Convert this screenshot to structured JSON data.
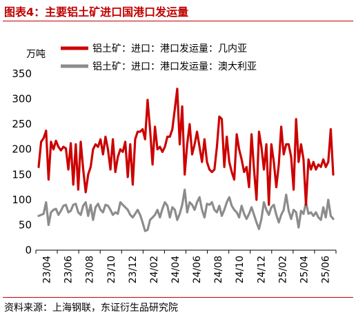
{
  "figure_title": "图表4：主要铝土矿进口国港口发运量",
  "source_note": "资料来源：上海钢联，东证衍生品研究院",
  "colors": {
    "title": "#c00000",
    "guinea": "#cc0000",
    "australia": "#8c8c8c"
  },
  "chart_data": {
    "type": "line",
    "unit_label": "万吨",
    "ylim": [
      0,
      350
    ],
    "yticks": [
      0,
      50,
      100,
      150,
      200,
      250,
      300,
      350
    ],
    "xticks": [
      "23/04",
      "23/06",
      "23/08",
      "23/10",
      "23/12",
      "24/02",
      "24/04",
      "24/06",
      "24/08",
      "24/10",
      "24/12",
      "25/02",
      "25/04",
      "25/06"
    ],
    "grid": false,
    "legend_position": "top",
    "series": [
      {
        "name": "铝土矿：进口：港口发运量：几内亚",
        "color": "#cc0000",
        "values": [
          165,
          215,
          222,
          237,
          140,
          215,
          200,
          217,
          205,
          198,
          205,
          202,
          160,
          212,
          130,
          210,
          120,
          215,
          160,
          115,
          150,
          165,
          200,
          210,
          205,
          220,
          190,
          225,
          200,
          160,
          220,
          155,
          185,
          200,
          195,
          215,
          145,
          210,
          130,
          220,
          235,
          235,
          240,
          220,
          298,
          240,
          170,
          245,
          200,
          205,
          195,
          205,
          225,
          225,
          240,
          280,
          320,
          210,
          285,
          150,
          210,
          250,
          190,
          210,
          235,
          205,
          175,
          220,
          175,
          160,
          155,
          160,
          205,
          265,
          260,
          165,
          225,
          175,
          155,
          140,
          230,
          200,
          180,
          155,
          165,
          125,
          230,
          160,
          100,
          235,
          205,
          160,
          210,
          90,
          210,
          175,
          125,
          170,
          245,
          190,
          210,
          210,
          185,
          120,
          260,
          175,
          210,
          180,
          90,
          180,
          160,
          175,
          160,
          170,
          165,
          180,
          165,
          175,
          240,
          150
        ]
      },
      {
        "name": "铝土矿：进口：港口发运量：澳大利亚",
        "color": "#8c8c8c",
        "values": [
          68,
          70,
          72,
          95,
          50,
          75,
          80,
          82,
          70,
          78,
          88,
          90,
          75,
          78,
          90,
          92,
          75,
          70,
          88,
          95,
          68,
          90,
          60,
          85,
          92,
          80,
          75,
          90,
          88,
          80,
          70,
          75,
          72,
          95,
          90,
          85,
          80,
          70,
          65,
          72,
          80,
          70,
          55,
          38,
          40,
          60,
          65,
          70,
          80,
          65,
          82,
          95,
          88,
          65,
          85,
          80,
          60,
          72,
          90,
          120,
          75,
          95,
          90,
          80,
          95,
          105,
          80,
          65,
          92,
          90,
          95,
          80,
          75,
          88,
          68,
          80,
          95,
          105,
          88,
          80,
          75,
          65,
          88,
          72,
          62,
          72,
          85,
          70,
          55,
          42,
          62,
          95,
          80,
          70,
          85,
          90,
          70,
          55,
          70,
          80,
          110,
          78,
          62,
          80,
          75,
          45,
          78,
          72,
          95,
          72,
          75,
          68,
          75,
          65,
          60,
          85,
          65,
          100,
          68,
          62
        ]
      }
    ]
  }
}
